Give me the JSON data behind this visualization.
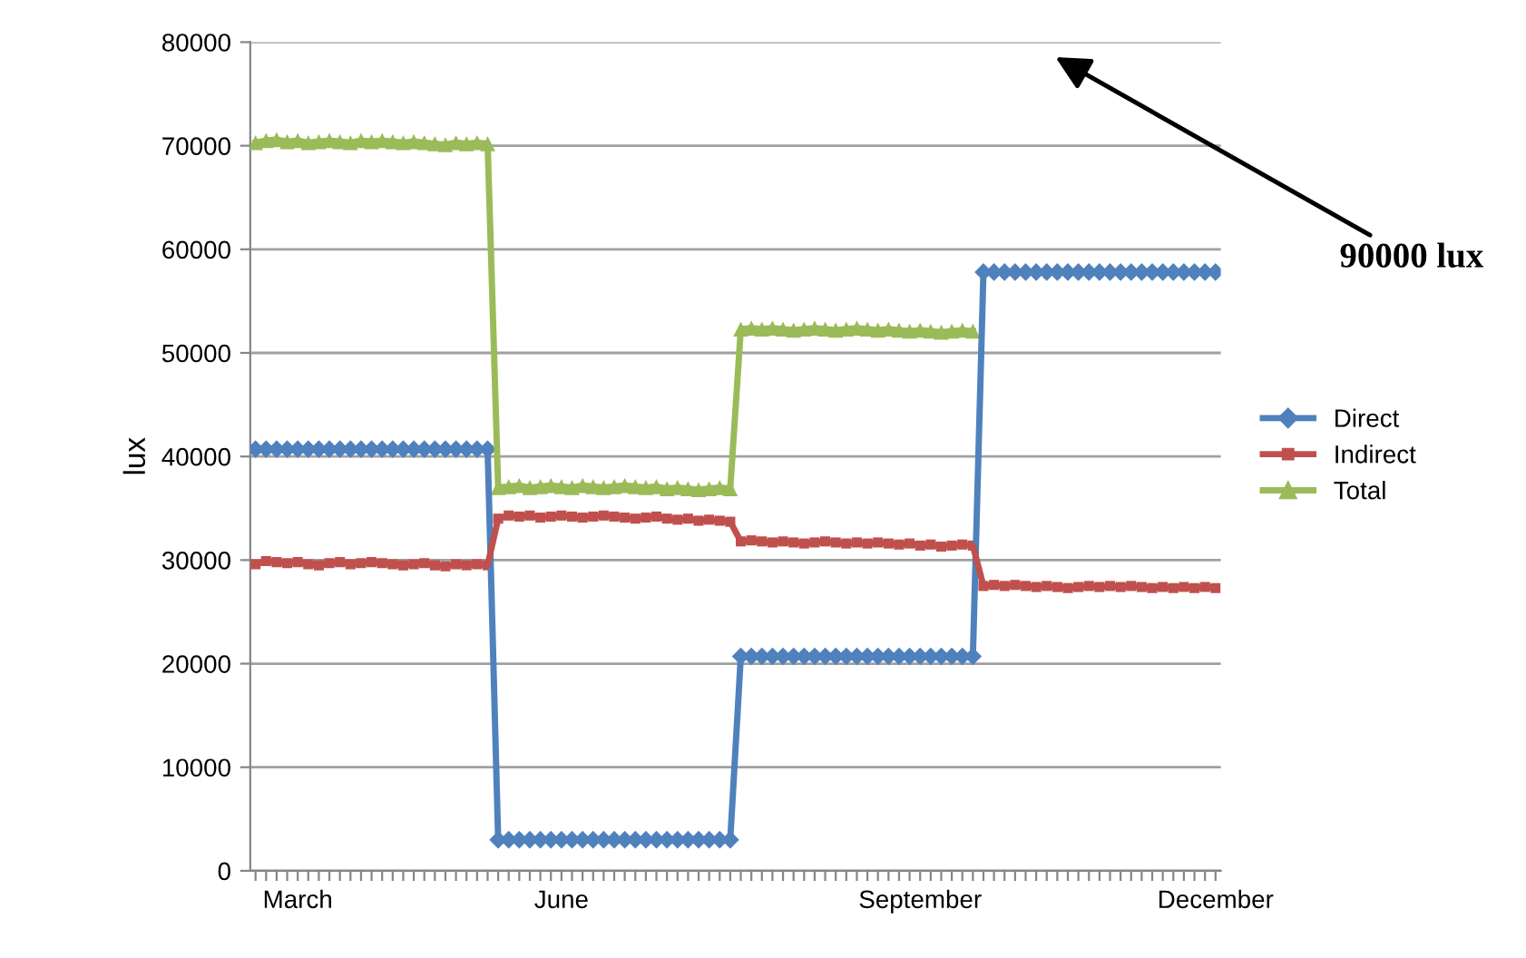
{
  "chart_data": {
    "type": "line",
    "ylabel": "lux",
    "categories": [
      null,
      null,
      null,
      null,
      "March",
      null,
      null,
      null,
      null,
      null,
      null,
      null,
      null,
      null,
      null,
      null,
      null,
      null,
      null,
      null,
      null,
      null,
      null,
      null,
      null,
      null,
      null,
      null,
      null,
      "June",
      null,
      null,
      null,
      null,
      null,
      null,
      null,
      null,
      null,
      null,
      null,
      null,
      null,
      null,
      null,
      null,
      null,
      null,
      null,
      null,
      null,
      null,
      null,
      null,
      null,
      null,
      null,
      null,
      null,
      null,
      null,
      null,
      null,
      "September",
      null,
      null,
      null,
      null,
      null,
      null,
      null,
      null,
      null,
      null,
      null,
      null,
      null,
      null,
      null,
      null,
      null,
      null,
      null,
      null,
      null,
      null,
      null,
      null,
      null,
      null,
      null,
      "December"
    ],
    "series": [
      {
        "name": "Direct",
        "color": "#4f81bd",
        "marker": "diamond",
        "values": [
          40700,
          40700,
          40700,
          40700,
          40700,
          40700,
          40700,
          40700,
          40700,
          40700,
          40700,
          40700,
          40700,
          40700,
          40700,
          40700,
          40700,
          40700,
          40700,
          40700,
          40700,
          40700,
          40700,
          3000,
          3000,
          3000,
          3000,
          3000,
          3000,
          3000,
          3000,
          3000,
          3000,
          3000,
          3000,
          3000,
          3000,
          3000,
          3000,
          3000,
          3000,
          3000,
          3000,
          3000,
          3000,
          3000,
          20700,
          20700,
          20700,
          20700,
          20700,
          20700,
          20700,
          20700,
          20700,
          20700,
          20700,
          20700,
          20700,
          20700,
          20700,
          20700,
          20700,
          20700,
          20700,
          20700,
          20700,
          20700,
          20700,
          57800,
          57800,
          57800,
          57800,
          57800,
          57800,
          57800,
          57800,
          57800,
          57800,
          57800,
          57800,
          57800,
          57800,
          57800,
          57800,
          57800,
          57800,
          57800,
          57800,
          57800,
          57800,
          57800
        ]
      },
      {
        "name": "Indirect",
        "color": "#c0504d",
        "marker": "square",
        "values": [
          29600,
          29900,
          29800,
          29700,
          29800,
          29600,
          29500,
          29700,
          29800,
          29600,
          29700,
          29800,
          29700,
          29600,
          29500,
          29600,
          29700,
          29500,
          29400,
          29600,
          29500,
          29600,
          29500,
          34000,
          34300,
          34200,
          34300,
          34100,
          34200,
          34300,
          34200,
          34100,
          34200,
          34300,
          34200,
          34100,
          34000,
          34100,
          34200,
          34000,
          33900,
          34000,
          33800,
          33900,
          33800,
          33700,
          31800,
          31900,
          31800,
          31700,
          31800,
          31700,
          31600,
          31700,
          31800,
          31700,
          31600,
          31700,
          31600,
          31700,
          31600,
          31500,
          31600,
          31400,
          31500,
          31300,
          31400,
          31500,
          31400,
          27500,
          27600,
          27500,
          27600,
          27500,
          27400,
          27500,
          27400,
          27300,
          27400,
          27500,
          27400,
          27500,
          27400,
          27500,
          27400,
          27300,
          27400,
          27300,
          27400,
          27300,
          27400,
          27300
        ]
      },
      {
        "name": "Total",
        "color": "#9bbb59",
        "marker": "triangle",
        "values": [
          70300,
          70500,
          70600,
          70400,
          70500,
          70300,
          70400,
          70500,
          70400,
          70300,
          70500,
          70400,
          70500,
          70400,
          70300,
          70400,
          70300,
          70200,
          70100,
          70300,
          70200,
          70300,
          70200,
          37000,
          37100,
          37200,
          37000,
          37100,
          37200,
          37100,
          37000,
          37200,
          37100,
          37000,
          37100,
          37200,
          37100,
          37000,
          37100,
          36900,
          37000,
          36900,
          36800,
          36900,
          37000,
          36900,
          52300,
          52400,
          52300,
          52400,
          52300,
          52200,
          52300,
          52400,
          52300,
          52200,
          52300,
          52400,
          52300,
          52200,
          52300,
          52200,
          52100,
          52200,
          52100,
          52000,
          52100,
          52200,
          52100,
          null,
          null,
          null,
          null,
          null,
          null,
          null,
          null,
          null,
          null,
          null,
          null,
          null,
          null,
          null,
          null,
          null,
          null,
          null,
          null,
          null,
          null,
          null
        ]
      }
    ],
    "ylim": [
      0,
      80000
    ],
    "yticks": [
      0,
      10000,
      20000,
      30000,
      40000,
      50000,
      60000,
      70000,
      80000
    ],
    "grid": "y",
    "legend": "right",
    "annotations": [
      "90000 lux"
    ]
  }
}
